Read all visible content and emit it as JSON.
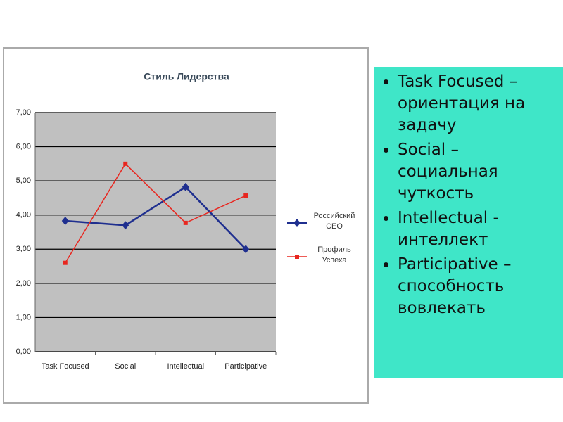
{
  "chart_data": {
    "type": "line",
    "title": "Стиль Лидерства",
    "categories": [
      "Task Focused",
      "Social",
      "Intellectual",
      "Participative"
    ],
    "series": [
      {
        "name": "Российский CEO",
        "color": "#1f2f8f",
        "marker": "diamond",
        "values": [
          3.83,
          3.7,
          4.82,
          3.0
        ]
      },
      {
        "name": "Профиль Успеха",
        "color": "#e8261f",
        "marker": "square",
        "values": [
          2.6,
          5.5,
          3.77,
          4.57
        ]
      }
    ],
    "ylim": [
      0,
      7
    ],
    "yticks": [
      {
        "value": 0,
        "label": "0,00"
      },
      {
        "value": 1,
        "label": "1,00"
      },
      {
        "value": 2,
        "label": "2,00"
      },
      {
        "value": 3,
        "label": "3,00"
      },
      {
        "value": 4,
        "label": "4,00"
      },
      {
        "value": 5,
        "label": "5,00"
      },
      {
        "value": 6,
        "label": "6,00"
      },
      {
        "value": 7,
        "label": "7,00"
      }
    ],
    "grid": true,
    "legend": "right"
  },
  "bullets": [
    "Task Focused – ориентация на задачу",
    "Social – социальная чуткость",
    "Intellectual - интеллект",
    "Participative – способность вовлекать"
  ]
}
